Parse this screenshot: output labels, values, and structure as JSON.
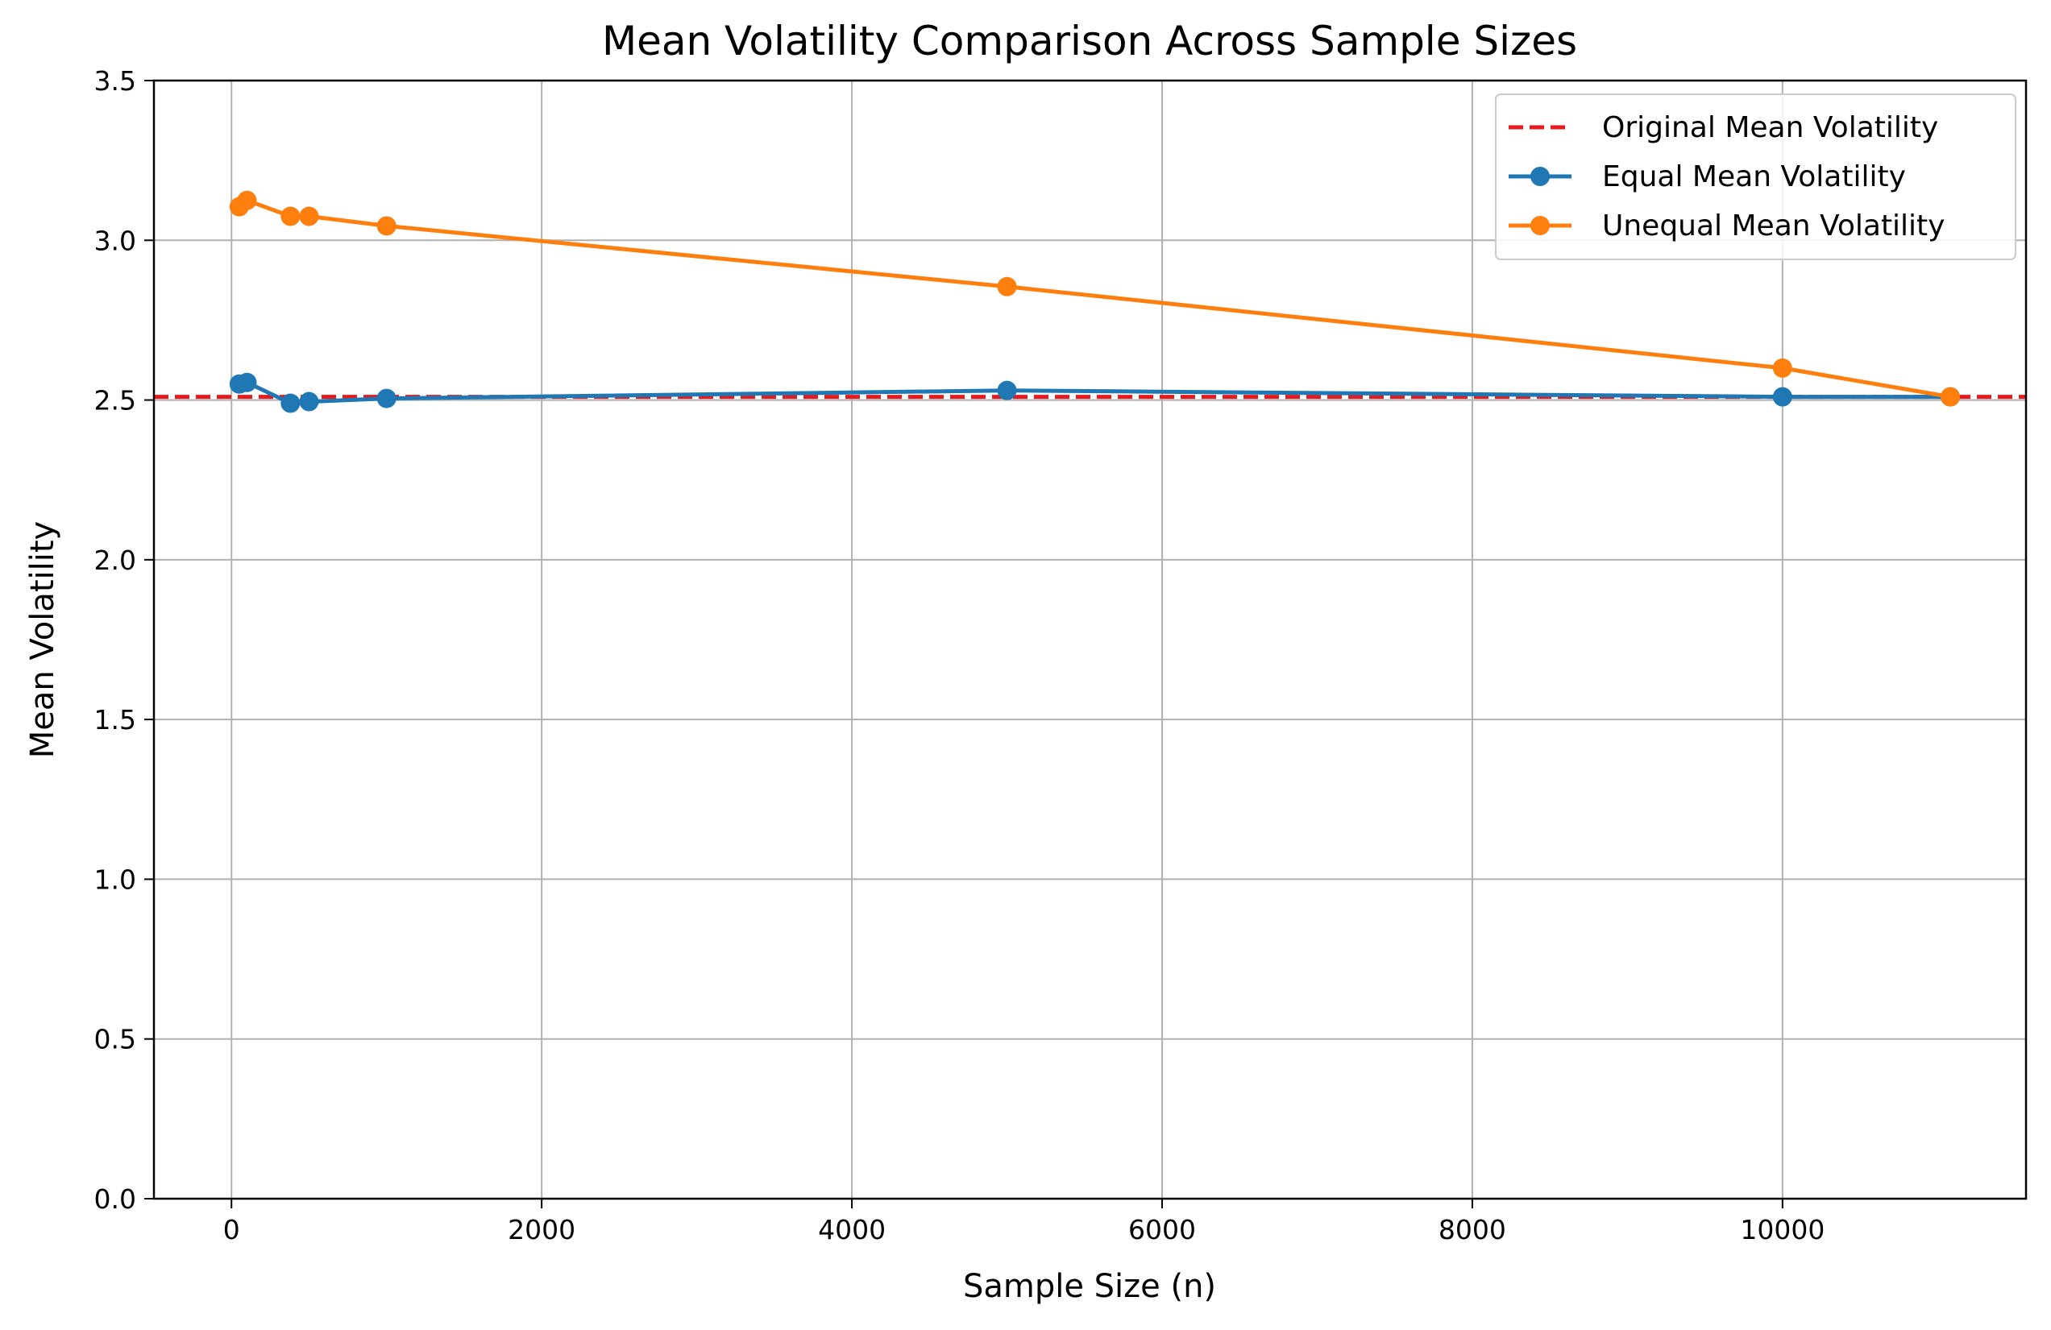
{
  "chart_data": {
    "type": "line",
    "title": "Mean Volatility Comparison Across Sample Sizes",
    "xlabel": "Sample Size (n)",
    "ylabel": "Mean Volatility",
    "xlim": [
      -500,
      11570
    ],
    "ylim": [
      0,
      3.5
    ],
    "xticks": [
      0,
      2000,
      4000,
      6000,
      8000,
      10000
    ],
    "xtick_labels": [
      "0",
      "2000",
      "4000",
      "6000",
      "8000",
      "10000"
    ],
    "yticks": [
      0,
      0.5,
      1.0,
      1.5,
      2.0,
      2.5,
      3.0,
      3.5
    ],
    "ytick_labels": [
      "0.0",
      "0.5",
      "1.0",
      "1.5",
      "2.0",
      "2.5",
      "3.0",
      "3.5"
    ],
    "grid": true,
    "legend_position": "top-right",
    "reference_line": {
      "name": "Original Mean Volatility",
      "y": 2.51,
      "color": "#e41a1c",
      "style": "dashed"
    },
    "series": [
      {
        "name": "Equal Mean Volatility",
        "color": "#1f77b4",
        "x": [
          50,
          100,
          380,
          500,
          1000,
          5000,
          10000,
          11082
        ],
        "y": [
          2.55,
          2.555,
          2.49,
          2.495,
          2.505,
          2.53,
          2.51,
          2.51
        ]
      },
      {
        "name": "Unequal Mean Volatility",
        "color": "#ff7f0e",
        "x": [
          50,
          100,
          380,
          500,
          1000,
          5000,
          10000,
          11082
        ],
        "y": [
          3.105,
          3.125,
          3.075,
          3.075,
          3.045,
          2.855,
          2.6,
          2.51
        ]
      }
    ]
  }
}
